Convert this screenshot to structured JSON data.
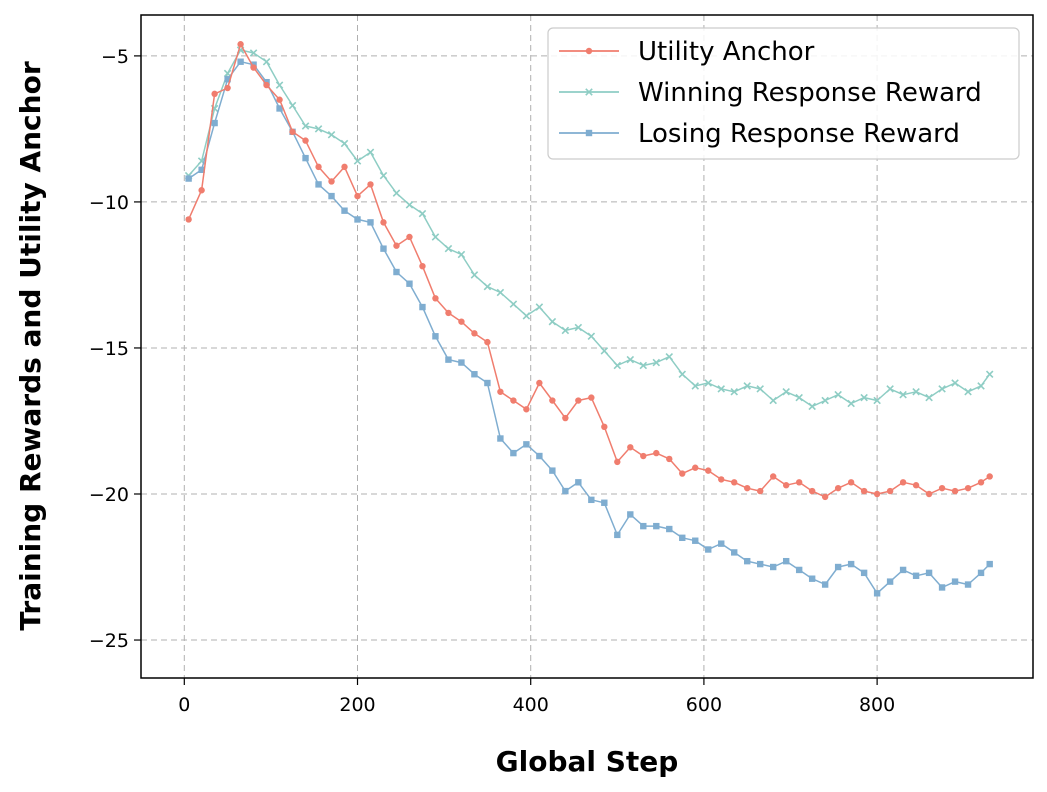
{
  "chart_data": {
    "type": "line",
    "title": "",
    "xlabel": "Global Step",
    "ylabel": "Training Rewards and Utility Anchor",
    "xlim": [
      -50,
      980
    ],
    "ylim": [
      -26.3,
      -3.6
    ],
    "xticks": [
      0,
      200,
      400,
      600,
      800
    ],
    "yticks": [
      -5,
      -10,
      -15,
      -20,
      -25
    ],
    "xtick_labels": [
      "0",
      "200",
      "400",
      "600",
      "800"
    ],
    "ytick_labels": [
      "−5",
      "−10",
      "−15",
      "−20",
      "−25"
    ],
    "grid": true,
    "legend_position": "top-right",
    "series": [
      {
        "name": "Utility Anchor",
        "color": "#f07d6e",
        "marker": "circle",
        "points": [
          [
            5,
            -10.6
          ],
          [
            20,
            -9.6
          ],
          [
            35,
            -6.3
          ],
          [
            50,
            -6.1
          ],
          [
            65,
            -4.6
          ],
          [
            80,
            -5.4
          ],
          [
            95,
            -6.0
          ],
          [
            110,
            -6.5
          ],
          [
            125,
            -7.6
          ],
          [
            140,
            -7.9
          ],
          [
            155,
            -8.8
          ],
          [
            170,
            -9.3
          ],
          [
            185,
            -8.8
          ],
          [
            200,
            -9.8
          ],
          [
            215,
            -9.4
          ],
          [
            230,
            -10.7
          ],
          [
            245,
            -11.5
          ],
          [
            260,
            -11.2
          ],
          [
            275,
            -12.2
          ],
          [
            290,
            -13.3
          ],
          [
            305,
            -13.8
          ],
          [
            320,
            -14.1
          ],
          [
            335,
            -14.5
          ],
          [
            350,
            -14.8
          ],
          [
            365,
            -16.5
          ],
          [
            380,
            -16.8
          ],
          [
            395,
            -17.1
          ],
          [
            410,
            -16.2
          ],
          [
            425,
            -16.8
          ],
          [
            440,
            -17.4
          ],
          [
            455,
            -16.8
          ],
          [
            470,
            -16.7
          ],
          [
            485,
            -17.7
          ],
          [
            500,
            -18.9
          ],
          [
            515,
            -18.4
          ],
          [
            530,
            -18.7
          ],
          [
            545,
            -18.6
          ],
          [
            560,
            -18.8
          ],
          [
            575,
            -19.3
          ],
          [
            590,
            -19.1
          ],
          [
            605,
            -19.2
          ],
          [
            620,
            -19.5
          ],
          [
            635,
            -19.6
          ],
          [
            650,
            -19.8
          ],
          [
            665,
            -19.9
          ],
          [
            680,
            -19.4
          ],
          [
            695,
            -19.7
          ],
          [
            710,
            -19.6
          ],
          [
            725,
            -19.9
          ],
          [
            740,
            -20.1
          ],
          [
            755,
            -19.8
          ],
          [
            770,
            -19.6
          ],
          [
            785,
            -19.9
          ],
          [
            800,
            -20.0
          ],
          [
            815,
            -19.9
          ],
          [
            830,
            -19.6
          ],
          [
            845,
            -19.7
          ],
          [
            860,
            -20.0
          ],
          [
            875,
            -19.8
          ],
          [
            890,
            -19.9
          ],
          [
            905,
            -19.8
          ],
          [
            920,
            -19.6
          ],
          [
            930,
            -19.4
          ]
        ]
      },
      {
        "name": "Winning Response Reward",
        "color": "#8ecdc4",
        "marker": "x",
        "points": [
          [
            5,
            -9.1
          ],
          [
            20,
            -8.6
          ],
          [
            35,
            -6.8
          ],
          [
            50,
            -5.6
          ],
          [
            65,
            -4.8
          ],
          [
            80,
            -4.9
          ],
          [
            95,
            -5.2
          ],
          [
            110,
            -6.0
          ],
          [
            125,
            -6.7
          ],
          [
            140,
            -7.4
          ],
          [
            155,
            -7.5
          ],
          [
            170,
            -7.7
          ],
          [
            185,
            -8.0
          ],
          [
            200,
            -8.6
          ],
          [
            215,
            -8.3
          ],
          [
            230,
            -9.1
          ],
          [
            245,
            -9.7
          ],
          [
            260,
            -10.1
          ],
          [
            275,
            -10.4
          ],
          [
            290,
            -11.2
          ],
          [
            305,
            -11.6
          ],
          [
            320,
            -11.8
          ],
          [
            335,
            -12.5
          ],
          [
            350,
            -12.9
          ],
          [
            365,
            -13.1
          ],
          [
            380,
            -13.5
          ],
          [
            395,
            -13.9
          ],
          [
            410,
            -13.6
          ],
          [
            425,
            -14.1
          ],
          [
            440,
            -14.4
          ],
          [
            455,
            -14.3
          ],
          [
            470,
            -14.6
          ],
          [
            485,
            -15.1
          ],
          [
            500,
            -15.6
          ],
          [
            515,
            -15.4
          ],
          [
            530,
            -15.6
          ],
          [
            545,
            -15.5
          ],
          [
            560,
            -15.3
          ],
          [
            575,
            -15.9
          ],
          [
            590,
            -16.3
          ],
          [
            605,
            -16.2
          ],
          [
            620,
            -16.4
          ],
          [
            635,
            -16.5
          ],
          [
            650,
            -16.3
          ],
          [
            665,
            -16.4
          ],
          [
            680,
            -16.8
          ],
          [
            695,
            -16.5
          ],
          [
            710,
            -16.7
          ],
          [
            725,
            -17.0
          ],
          [
            740,
            -16.8
          ],
          [
            755,
            -16.6
          ],
          [
            770,
            -16.9
          ],
          [
            785,
            -16.7
          ],
          [
            800,
            -16.8
          ],
          [
            815,
            -16.4
          ],
          [
            830,
            -16.6
          ],
          [
            845,
            -16.5
          ],
          [
            860,
            -16.7
          ],
          [
            875,
            -16.4
          ],
          [
            890,
            -16.2
          ],
          [
            905,
            -16.5
          ],
          [
            920,
            -16.3
          ],
          [
            930,
            -15.9
          ]
        ]
      },
      {
        "name": "Losing Response Reward",
        "color": "#7fadd0",
        "marker": "square",
        "points": [
          [
            5,
            -9.2
          ],
          [
            20,
            -8.9
          ],
          [
            35,
            -7.3
          ],
          [
            50,
            -5.8
          ],
          [
            65,
            -5.2
          ],
          [
            80,
            -5.3
          ],
          [
            95,
            -5.9
          ],
          [
            110,
            -6.8
          ],
          [
            125,
            -7.6
          ],
          [
            140,
            -8.5
          ],
          [
            155,
            -9.4
          ],
          [
            170,
            -9.8
          ],
          [
            185,
            -10.3
          ],
          [
            200,
            -10.6
          ],
          [
            215,
            -10.7
          ],
          [
            230,
            -11.6
          ],
          [
            245,
            -12.4
          ],
          [
            260,
            -12.8
          ],
          [
            275,
            -13.6
          ],
          [
            290,
            -14.6
          ],
          [
            305,
            -15.4
          ],
          [
            320,
            -15.5
          ],
          [
            335,
            -15.9
          ],
          [
            350,
            -16.2
          ],
          [
            365,
            -18.1
          ],
          [
            380,
            -18.6
          ],
          [
            395,
            -18.3
          ],
          [
            410,
            -18.7
          ],
          [
            425,
            -19.2
          ],
          [
            440,
            -19.9
          ],
          [
            455,
            -19.6
          ],
          [
            470,
            -20.2
          ],
          [
            485,
            -20.3
          ],
          [
            500,
            -21.4
          ],
          [
            515,
            -20.7
          ],
          [
            530,
            -21.1
          ],
          [
            545,
            -21.1
          ],
          [
            560,
            -21.2
          ],
          [
            575,
            -21.5
          ],
          [
            590,
            -21.6
          ],
          [
            605,
            -21.9
          ],
          [
            620,
            -21.7
          ],
          [
            635,
            -22.0
          ],
          [
            650,
            -22.3
          ],
          [
            665,
            -22.4
          ],
          [
            680,
            -22.5
          ],
          [
            695,
            -22.3
          ],
          [
            710,
            -22.6
          ],
          [
            725,
            -22.9
          ],
          [
            740,
            -23.1
          ],
          [
            755,
            -22.5
          ],
          [
            770,
            -22.4
          ],
          [
            785,
            -22.7
          ],
          [
            800,
            -23.4
          ],
          [
            815,
            -23.0
          ],
          [
            830,
            -22.6
          ],
          [
            845,
            -22.8
          ],
          [
            860,
            -22.7
          ],
          [
            875,
            -23.2
          ],
          [
            890,
            -23.0
          ],
          [
            905,
            -23.1
          ],
          [
            920,
            -22.7
          ],
          [
            930,
            -22.4
          ]
        ]
      }
    ]
  }
}
